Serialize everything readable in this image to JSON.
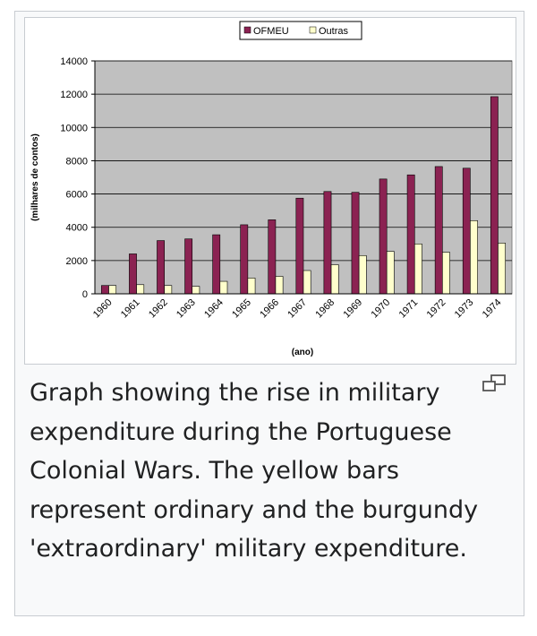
{
  "chart_data": {
    "type": "bar",
    "categories": [
      "1960",
      "1961",
      "1962",
      "1963",
      "1964",
      "1965",
      "1966",
      "1967",
      "1968",
      "1969",
      "1970",
      "1971",
      "1972",
      "1973",
      "1974"
    ],
    "series": [
      {
        "name": "OFMEU",
        "color": "#8b2252",
        "values": [
          500,
          2400,
          3200,
          3300,
          3550,
          4150,
          4450,
          5750,
          6150,
          6100,
          6900,
          7150,
          7650,
          7550,
          11850
        ]
      },
      {
        "name": "Outras",
        "color": "#ffffcc",
        "values": [
          500,
          550,
          500,
          450,
          750,
          950,
          1050,
          1400,
          1750,
          2300,
          2550,
          3000,
          2500,
          4400,
          3050
        ]
      }
    ],
    "yticks": [
      "0",
      "2000",
      "4000",
      "6000",
      "8000",
      "10000",
      "12000",
      "14000"
    ],
    "ylim": [
      0,
      14000
    ],
    "xlabel": "(ano)",
    "ylabel": "(milhares de contos)",
    "legend_position": "top-center",
    "grid": true
  },
  "caption": "Graph showing the rise in military expenditure during the Portuguese Colonial Wars. The yellow bars represent ordinary and the burgundy 'extraordinary' military expenditure.",
  "icons": {
    "enlarge": "magnify-clip-icon"
  }
}
